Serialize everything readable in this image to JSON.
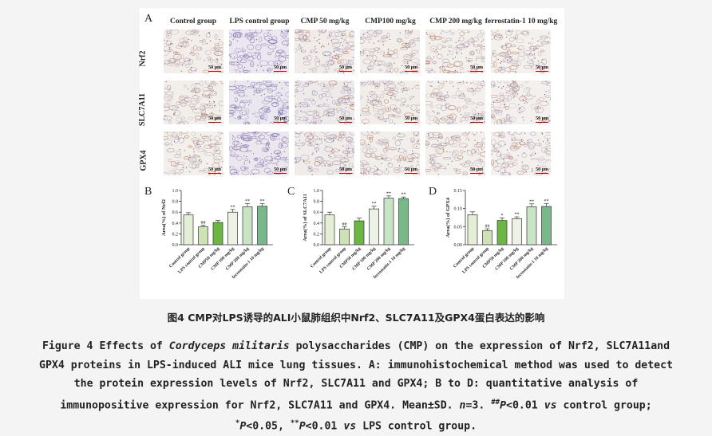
{
  "figure": {
    "panel_labels": {
      "A": "A",
      "B": "B",
      "C": "C",
      "D": "D"
    },
    "columns": [
      "Control group",
      "LPS control group",
      "CMP 50 mg/kg",
      "CMP100 mg/kg",
      "CMP 200 mg/kg",
      "ferrostatin-1 10 mg/kg"
    ],
    "rows": [
      "Nrf2",
      "SLC7A11",
      "GPX4"
    ],
    "scale_bar": "50 μm"
  },
  "chart_data": [
    {
      "type": "bar",
      "panel": "B",
      "ylabel": "Area(%) of Nrf2",
      "ylim": [
        0,
        1.0
      ],
      "yticks": [
        "0.0",
        "0.2",
        "0.4",
        "0.6",
        "0.8",
        "1.0"
      ],
      "categories": [
        "Control group",
        "LPS control group",
        "CMP50 mg/kg",
        "CMP 100 mg/kg",
        "CMP 200 mg/kg",
        "ferrostatin-1 10 mg/kg"
      ],
      "values": [
        0.55,
        0.33,
        0.41,
        0.6,
        0.7,
        0.71
      ],
      "errors": [
        0.04,
        0.03,
        0.04,
        0.05,
        0.06,
        0.05
      ],
      "labels": [
        "",
        "##",
        "",
        "**",
        "**",
        "**"
      ],
      "colors": [
        "#e4efd6",
        "#cde3b5",
        "#6cb643",
        "#edf3e4",
        "#c8e4c4",
        "#78b98a"
      ]
    },
    {
      "type": "bar",
      "panel": "C",
      "ylabel": "Area(%) of SLC7A11",
      "ylim": [
        0,
        1.0
      ],
      "yticks": [
        "0.0",
        "0.2",
        "0.4",
        "0.6",
        "0.8",
        "1.0"
      ],
      "categories": [
        "Control group",
        "LPS control group",
        "CMP50 mg/kg",
        "CMP 100 mg/kg",
        "CMP 200 mg/kg",
        "ferrostatin-1 10 mg/kg"
      ],
      "values": [
        0.55,
        0.29,
        0.44,
        0.66,
        0.86,
        0.85
      ],
      "errors": [
        0.05,
        0.04,
        0.05,
        0.05,
        0.04,
        0.03
      ],
      "labels": [
        "",
        "##",
        "",
        "**",
        "**",
        "**"
      ],
      "colors": [
        "#e4efd6",
        "#cde3b5",
        "#6cb643",
        "#edf3e4",
        "#c8e4c4",
        "#78b98a"
      ]
    },
    {
      "type": "bar",
      "panel": "D",
      "ylabel": "Area(%) of GPX4",
      "ylim": [
        0,
        0.15
      ],
      "yticks": [
        "0.00",
        "0.05",
        "0.10",
        "0.15"
      ],
      "categories": [
        "Control group",
        "LPS control group",
        "CMP50 mg/kg",
        "CMP 100 mg/kg",
        "CMP 200 mg/kg",
        "ferrostatin-1 10 mg/kg"
      ],
      "values": [
        0.083,
        0.039,
        0.067,
        0.072,
        0.105,
        0.106
      ],
      "errors": [
        0.008,
        0.005,
        0.007,
        0.005,
        0.008,
        0.008
      ],
      "labels": [
        "",
        "##",
        "*",
        "**",
        "**",
        "**"
      ],
      "colors": [
        "#e4efd6",
        "#cde3b5",
        "#6cb643",
        "#edf3e4",
        "#c8e4c4",
        "#78b98a"
      ]
    }
  ],
  "caption_cn": "图4 CMP对LPS诱导的ALI小鼠肺组织中Nrf2、SLC7A11及GPX4蛋白表达的影响",
  "caption_en": {
    "l1_a": "Figure 4 Effects of ",
    "l1_b": "Cordyceps militaris",
    "l1_c": " polysaccharides (CMP) on the expression of Nrf2, SLC7A11and",
    "l2": "GPX4 proteins in LPS-induced ALI mice lung tissues. A: immunohistochemical method was used to detect",
    "l3": "the protein expression levels of Nrf2, SLC7A11 and GPX4; B to D: quantitative analysis of",
    "l4_a": "immunopositive expression for Nrf2, SLC7A11 and GPX4. Mean±SD. ",
    "l4_n": "n",
    "l4_b": "=3. ",
    "l4_sup": "##",
    "l4_p": "P",
    "l4_c": "<0.01 ",
    "l4_vs": "vs",
    "l4_d": " control group;",
    "l5_sup1": "*",
    "l5_p1": "P",
    "l5_a": "<0.05, ",
    "l5_sup2": "**",
    "l5_p2": "P",
    "l5_b": "<0.01 ",
    "l5_vs": "vs",
    "l5_c": " LPS control group."
  }
}
